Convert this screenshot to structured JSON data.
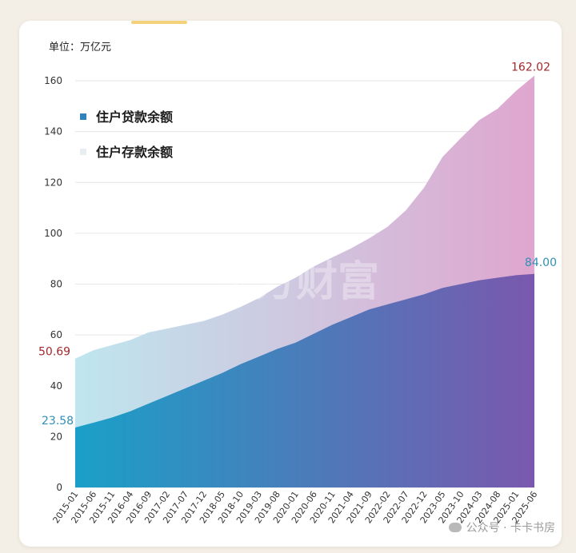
{
  "unit_label": "单位：万亿元",
  "watermark": "东方财富",
  "footer": "公众号 · 卡卡书房",
  "colors": {
    "loan_start": "#1aa0c8",
    "loan_end": "#7a58ad",
    "deposit_start": "#bfe6ef",
    "deposit_end": "#dfa6cf",
    "label_red": "#a6262b",
    "label_blue": "#2f8fb6"
  },
  "chart_data": {
    "type": "area",
    "title": "",
    "xlabel": "",
    "ylabel": "",
    "ylim": [
      0,
      160
    ],
    "yticks": [
      0,
      20,
      40,
      60,
      80,
      100,
      120,
      140,
      160
    ],
    "grid": true,
    "legend_position": "top-left",
    "x_tick_labels": [
      "2015-01",
      "2015-06",
      "2015-11",
      "2016-04",
      "2016-09",
      "2017-02",
      "2017-07",
      "2017-12",
      "2018-05",
      "2018-10",
      "2019-03",
      "2019-08",
      "2020-01",
      "2020-06",
      "2020-11",
      "2021-04",
      "2021-09",
      "2022-02",
      "2022-07",
      "2022-12",
      "2023-05",
      "2023-10",
      "2024-03",
      "2024-08",
      "2025-01",
      "2025-06"
    ],
    "series": [
      {
        "name": "住户存款余额",
        "start_label": "50.69",
        "end_label": "162.02",
        "values": [
          50.69,
          54.0,
          56.0,
          58.0,
          61.0,
          62.5,
          64.0,
          65.5,
          68.0,
          71.0,
          74.5,
          79.0,
          82.5,
          87.0,
          90.5,
          94.0,
          98.0,
          102.5,
          109.0,
          118.0,
          130.0,
          137.5,
          144.5,
          149.0,
          156.0,
          162.02
        ]
      },
      {
        "name": "住户贷款余额",
        "start_label": "23.58",
        "end_label": "84.00",
        "values": [
          23.58,
          25.5,
          27.5,
          30.0,
          33.0,
          36.0,
          39.0,
          42.0,
          45.0,
          48.5,
          51.5,
          54.5,
          57.0,
          60.5,
          64.0,
          67.0,
          70.0,
          72.0,
          74.0,
          76.0,
          78.5,
          80.0,
          81.5,
          82.5,
          83.5,
          84.0
        ]
      }
    ]
  }
}
